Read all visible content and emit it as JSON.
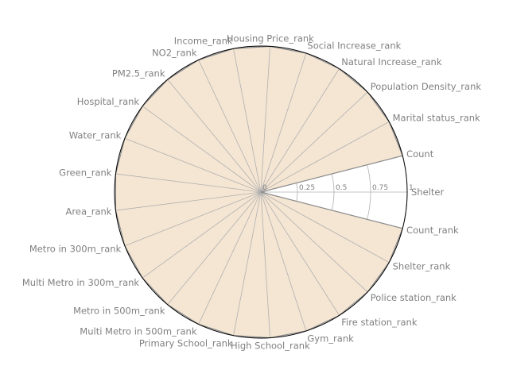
{
  "chart_data": {
    "type": "radar",
    "rlim": [
      0,
      1
    ],
    "r_ticks": [
      "0",
      "0.25",
      "0.5",
      "0.75",
      "1"
    ],
    "grid": true,
    "categories": [
      "Shelter",
      "Count",
      "Marital status_rank",
      "Population Density_rank",
      "Natural Increase_rank",
      "Social Increase_rank",
      "Housing Price_rank",
      "Income_rank",
      "NO2_rank",
      "PM2.5_rank",
      "Hospital_rank",
      "Water_rank",
      "Green_rank",
      "Area_rank",
      "Metro in 300m_rank",
      "Multi Metro in 300m_rank",
      "Metro in 500m_rank",
      "Multi Metro in 500m_rank",
      "Primary School_rank",
      "High School_rank",
      "Gym_rank",
      "Fire station_rank",
      "Police station_rank",
      "Shelter_rank",
      "Count_rank"
    ],
    "series": [
      {
        "values": [
          0,
          1,
          1,
          1,
          1,
          1,
          1,
          1,
          1,
          1,
          1,
          1,
          1,
          1,
          1,
          1,
          1,
          1,
          1,
          1,
          1,
          1,
          1,
          1,
          1
        ]
      }
    ],
    "colors": {
      "fill": "#f5e6d3",
      "edge": "#8c8c8c",
      "grid": "#b0b0b0",
      "spine": "#000000"
    }
  }
}
